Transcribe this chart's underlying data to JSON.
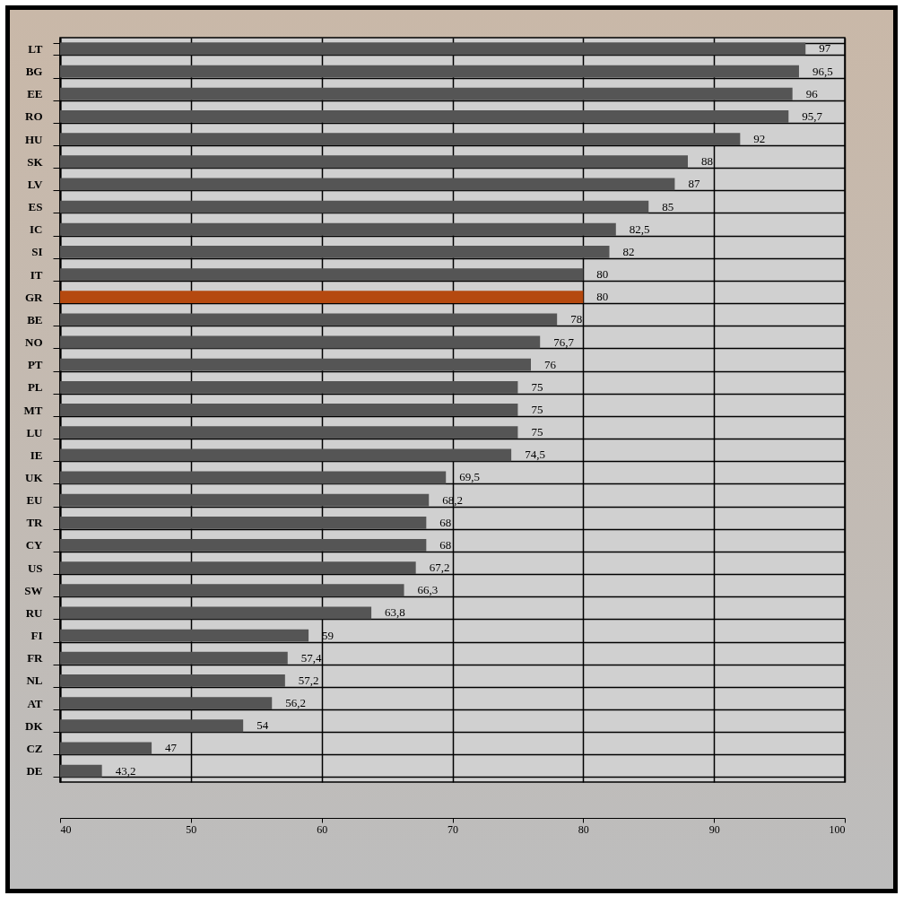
{
  "chart_data": {
    "type": "bar",
    "orientation": "horizontal",
    "categories": [
      "LT",
      "BG",
      "EE",
      "RO",
      "HU",
      "SK",
      "LV",
      "ES",
      "IC",
      "SI",
      "IT",
      "GR",
      "BE",
      "NO",
      "PT",
      "PL",
      "MT",
      "LU",
      "IE",
      "UK",
      "EU",
      "TR",
      "CY",
      "US",
      "SW",
      "RU",
      "FI",
      "FR",
      "NL",
      "AT",
      "DK",
      "CZ",
      "DE"
    ],
    "values": [
      97,
      96.5,
      96,
      95.7,
      92,
      88,
      87,
      85,
      82.5,
      82,
      80,
      80,
      78,
      76.7,
      76,
      75,
      75,
      75,
      74.5,
      69.5,
      68.2,
      68,
      68,
      67.2,
      66.3,
      63.8,
      59,
      57.4,
      57.2,
      56.2,
      54,
      47,
      43.2
    ],
    "value_labels": [
      "97",
      "96,5",
      "96",
      "95,7",
      "92",
      "88",
      "87",
      "85",
      "82,5",
      "82",
      "80",
      "80",
      "78",
      "76,7",
      "76",
      "75",
      "75",
      "75",
      "74,5",
      "69,5",
      "68,2",
      "68",
      "68",
      "67,2",
      "66,3",
      "63,8",
      "59",
      "57,4",
      "57,2",
      "56,2",
      "54",
      "47",
      "43,2"
    ],
    "colors": [
      "#555555",
      "#555555",
      "#555555",
      "#555555",
      "#555555",
      "#555555",
      "#555555",
      "#555555",
      "#555555",
      "#555555",
      "#555555",
      "#b5490f",
      "#555555",
      "#555555",
      "#555555",
      "#555555",
      "#555555",
      "#555555",
      "#555555",
      "#555555",
      "#555555",
      "#555555",
      "#555555",
      "#555555",
      "#555555",
      "#555555",
      "#555555",
      "#555555",
      "#555555",
      "#555555",
      "#555555",
      "#555555",
      "#555555"
    ],
    "xlim": [
      40,
      100
    ],
    "xticks": [
      40,
      50,
      60,
      70,
      80,
      90,
      100
    ],
    "grid": true
  }
}
